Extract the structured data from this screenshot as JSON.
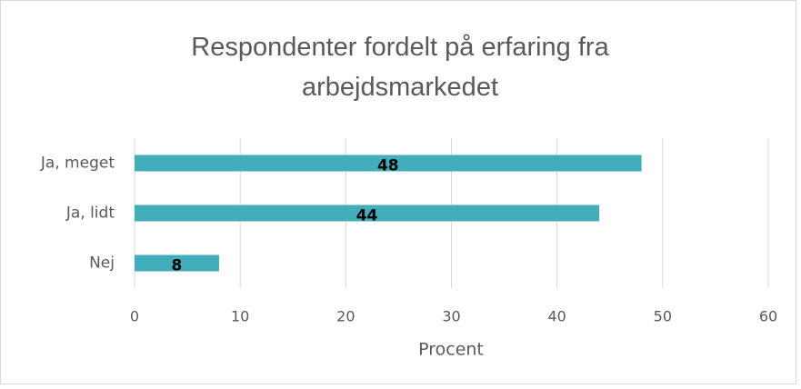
{
  "chart_data": {
    "type": "bar",
    "orientation": "horizontal",
    "title": "Respondenter fordelt på erfaring fra arbejdsmarkedet",
    "categories": [
      "Ja, meget",
      "Ja, lidt",
      "Nej"
    ],
    "values": [
      48,
      44,
      8
    ],
    "color": "#42adbb",
    "xlabel": "Procent",
    "xlim": [
      0,
      60
    ],
    "xticks": [
      0,
      10,
      20,
      30,
      40,
      50,
      60
    ],
    "grid": true
  }
}
